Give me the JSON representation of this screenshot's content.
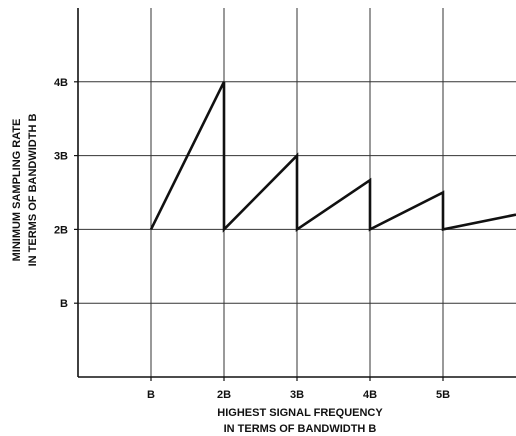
{
  "chart_data": {
    "type": "line",
    "title": "",
    "xlabel": [
      "HIGHEST SIGNAL FREQUENCY",
      "IN TERMS OF BANDWIDTH B"
    ],
    "ylabel": [
      "MINIMUM SAMPLING RATE",
      "IN TERMS OF BANDWIDTH B"
    ],
    "xlim": [
      0,
      6.0
    ],
    "ylim": [
      0,
      5.0
    ],
    "grid": true,
    "x_ticks": [
      {
        "value": 1,
        "label": "B"
      },
      {
        "value": 2,
        "label": "2B"
      },
      {
        "value": 3,
        "label": "3B"
      },
      {
        "value": 4,
        "label": "4B"
      },
      {
        "value": 5,
        "label": "5B"
      }
    ],
    "y_ticks": [
      {
        "value": 1,
        "label": "B"
      },
      {
        "value": 2,
        "label": "2B"
      },
      {
        "value": 3,
        "label": "3B"
      },
      {
        "value": 4,
        "label": "4B"
      }
    ],
    "series": [
      {
        "x": [
          1,
          2,
          2,
          3,
          3,
          4,
          4,
          5,
          5,
          6
        ],
        "y": [
          2,
          4,
          2,
          3,
          2,
          2.6667,
          2,
          2.5,
          2,
          2.2
        ]
      }
    ]
  }
}
